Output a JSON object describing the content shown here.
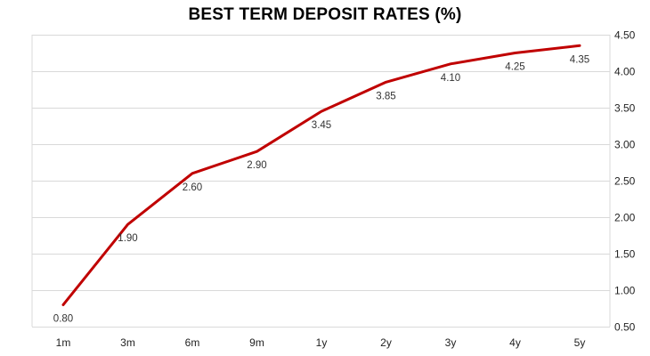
{
  "chart_data": {
    "type": "line",
    "title": "BEST TERM DEPOSIT RATES (%)",
    "xlabel": "",
    "ylabel": "",
    "categories": [
      "1m",
      "3m",
      "6m",
      "9m",
      "1y",
      "2y",
      "3y",
      "4y",
      "5y"
    ],
    "values": [
      0.8,
      1.9,
      2.6,
      2.9,
      3.45,
      3.85,
      4.1,
      4.25,
      4.35
    ],
    "value_labels": [
      "0.80",
      "1.90",
      "2.60",
      "2.90",
      "3.45",
      "3.85",
      "4.10",
      "4.25",
      "4.35"
    ],
    "ylim": [
      0.5,
      4.5
    ],
    "y_ticks": [
      "0.50",
      "1.00",
      "1.50",
      "2.00",
      "2.50",
      "3.00",
      "3.50",
      "4.00",
      "4.50"
    ],
    "y_axis_side": "right",
    "grid": "horizontal",
    "line_color": "#C00000",
    "grid_color": "#D9D9D9",
    "legend": "none"
  }
}
